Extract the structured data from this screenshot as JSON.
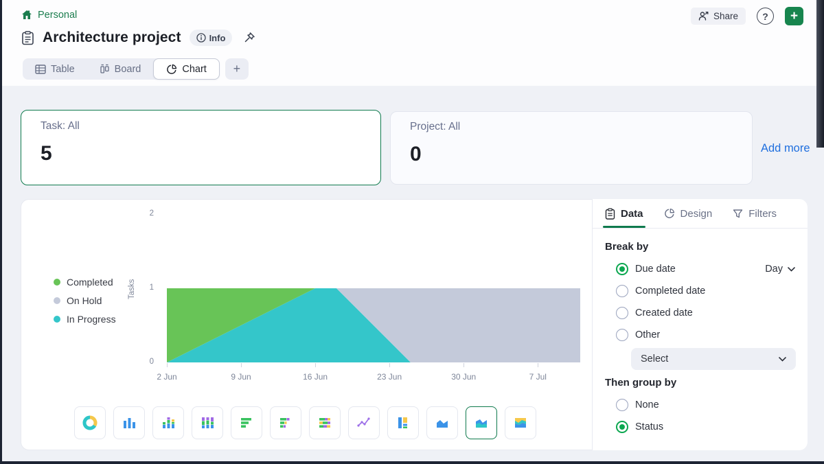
{
  "colors": {
    "brand_green": "#0f7a4d",
    "accent_green": "#0ca750",
    "link_blue": "#1f6fde",
    "series_completed": "#68c457",
    "series_on_hold": "#c4cada",
    "series_in_progress": "#34c6ca"
  },
  "header": {
    "workspace": "Personal",
    "title": "Architecture project",
    "info_button": "Info",
    "share_button": "Share",
    "help_button": "?",
    "add_button": "+",
    "view_tabs": [
      {
        "label": "Table",
        "active": false
      },
      {
        "label": "Board",
        "active": false
      },
      {
        "label": "Chart",
        "active": true
      }
    ],
    "new_view_button": "+"
  },
  "stats": {
    "cards": [
      {
        "label": "Task: All",
        "value": "5",
        "selected": true
      },
      {
        "label": "Project: All",
        "value": "0",
        "selected": false
      }
    ],
    "add_more": "Add more"
  },
  "chart_data": {
    "type": "area",
    "stacked": true,
    "title": "",
    "xlabel": "",
    "ylabel": "Tasks",
    "ylim": [
      0,
      2
    ],
    "yticks": [
      0,
      1,
      2
    ],
    "grid": false,
    "legend_position": "left",
    "x_axis": {
      "start_date": "2 Jun",
      "tick_labels": [
        "2 Jun",
        "9 Jun",
        "16 Jun",
        "23 Jun",
        "30 Jun",
        "7 Jul"
      ],
      "tick_days": [
        0,
        7,
        14,
        21,
        28,
        35
      ],
      "domain_days": [
        0,
        39
      ]
    },
    "sample_days": [
      0,
      14,
      16,
      23,
      39
    ],
    "series": [
      {
        "name": "In Progress",
        "color": "#34c6ca",
        "values": [
          0,
          1,
          1,
          0,
          0
        ]
      },
      {
        "name": "On Hold",
        "color": "#c4cada",
        "values": [
          0,
          0,
          0,
          1,
          1
        ]
      },
      {
        "name": "Completed",
        "color": "#68c457",
        "values": [
          1,
          0,
          0,
          0,
          0
        ]
      }
    ],
    "legend_order": [
      "Completed",
      "On Hold",
      "In Progress"
    ]
  },
  "chart_types": {
    "selected": "stacked-area",
    "options": [
      "donut",
      "bar-chart",
      "stacked-bar",
      "stacked-bar-100",
      "horizontal-bar",
      "horizontal-stacked-bar",
      "horizontal-stacked-bar-100",
      "line-chart",
      "block-chart",
      "area-chart",
      "stacked-area",
      "stacked-area-100"
    ]
  },
  "panel": {
    "tabs": [
      {
        "label": "Data",
        "active": true
      },
      {
        "label": "Design",
        "active": false
      },
      {
        "label": "Filters",
        "active": false
      }
    ],
    "break_by": {
      "heading": "Break by",
      "options": [
        {
          "label": "Due date",
          "selected": true,
          "granularity": "Day"
        },
        {
          "label": "Completed date",
          "selected": false
        },
        {
          "label": "Created date",
          "selected": false
        },
        {
          "label": "Other",
          "selected": false
        }
      ],
      "other_select": {
        "value": "Select"
      }
    },
    "then_group_by": {
      "heading": "Then group by",
      "options": [
        {
          "label": "None",
          "selected": false
        },
        {
          "label": "Status",
          "selected": true
        }
      ]
    }
  }
}
